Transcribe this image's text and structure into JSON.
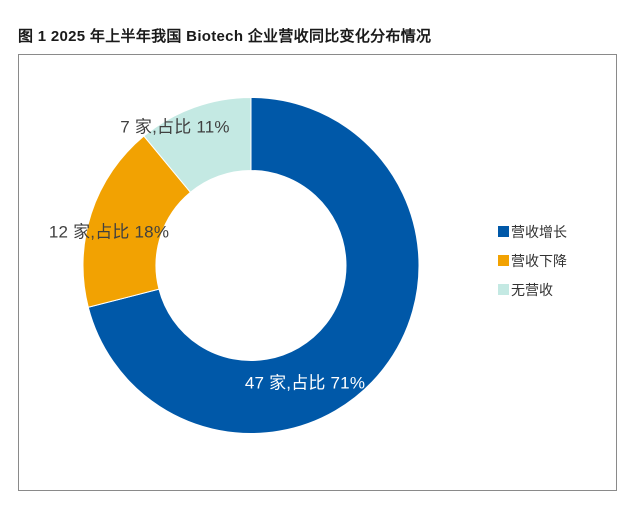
{
  "title": "图 1  2025 年上半年我国 Biotech 企业营收同比变化分布情况",
  "chart_data": {
    "type": "pie",
    "subtype": "donut",
    "title": "2025 年上半年我国 Biotech 企业营收同比变化分布情况",
    "categories": [
      "营收增长",
      "营收下降",
      "无营收"
    ],
    "values": [
      47,
      12,
      7
    ],
    "percents": [
      71,
      18,
      11
    ],
    "unit": "家",
    "labels": [
      "47 家,占比 71%",
      "12 家,占比 18%",
      "7 家,占比 11%"
    ],
    "colors": [
      "#0058A8",
      "#F2A202",
      "#C4E9E3"
    ],
    "start_angle_deg": 0,
    "clockwise": true,
    "inner_radius_ratio": 0.56,
    "legend_position": "right"
  },
  "legend": {
    "items": [
      {
        "label": "营收增长",
        "color": "#0058A8"
      },
      {
        "label": "营收下降",
        "color": "#F2A202"
      },
      {
        "label": "无营收",
        "color": "#C4E9E3"
      }
    ]
  }
}
